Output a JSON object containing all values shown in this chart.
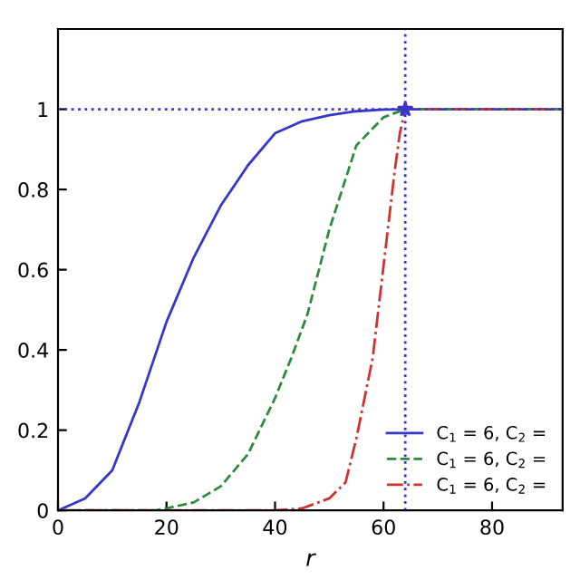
{
  "chart_data": {
    "type": "line",
    "xlabel": "r",
    "xlim": [
      0,
      93
    ],
    "xticks": [
      0,
      20,
      40,
      60,
      80
    ],
    "ylim": [
      0,
      1.2
    ],
    "yticks": [
      0,
      {
        "value": 0.2,
        "label": "0.2"
      },
      {
        "value": 0.4,
        "label": "0.4"
      },
      {
        "value": 0.6,
        "label": "0.6"
      },
      {
        "value": 0.8,
        "label": "0.8"
      },
      1
    ],
    "grid": false,
    "legend": "bottom right",
    "series": [
      {
        "name": "C$_{1}$ = 6, C$_{2}$ =",
        "color": "#3636c8",
        "line_style": "solid",
        "x": [
          0,
          5,
          10,
          15,
          20,
          25,
          30,
          35,
          40,
          45,
          50,
          55,
          60,
          64,
          93
        ],
        "values": [
          0,
          0.03,
          0.1,
          0.27,
          0.47,
          0.63,
          0.76,
          0.86,
          0.94,
          0.97,
          0.985,
          0.995,
          0.999,
          1,
          1
        ]
      },
      {
        "name": "C$_{1}$ = 6, C$_{2}$ =",
        "color": "#2e8b3e",
        "line_style": "dashed",
        "x": [
          0,
          18,
          20,
          25,
          30,
          35,
          40,
          43,
          46,
          50,
          55,
          60,
          64,
          93
        ],
        "values": [
          0,
          0,
          0.005,
          0.02,
          0.06,
          0.14,
          0.28,
          0.38,
          0.49,
          0.7,
          0.91,
          0.98,
          1,
          1
        ]
      },
      {
        "name": "C$_{1}$ = 6, C$_{2}$ =",
        "color": "#d03030",
        "line_style": "dashdot",
        "x": [
          0,
          40,
          45,
          50,
          53,
          55,
          58,
          60,
          62,
          63,
          64,
          93
        ],
        "values": [
          0,
          0,
          0.005,
          0.03,
          0.07,
          0.18,
          0.38,
          0.61,
          0.84,
          0.94,
          1,
          1
        ]
      },
      {
        "type": "scatter",
        "color": "#3636c8",
        "marker": "star",
        "x": [
          64
        ],
        "values": [
          1
        ]
      }
    ],
    "ref_lines": [
      {
        "axis": "y",
        "value": 1,
        "color": "#3636c8",
        "line_style": "dotted"
      },
      {
        "axis": "x",
        "value": 64,
        "color": "#3636c8",
        "line_style": "dotted"
      }
    ]
  }
}
